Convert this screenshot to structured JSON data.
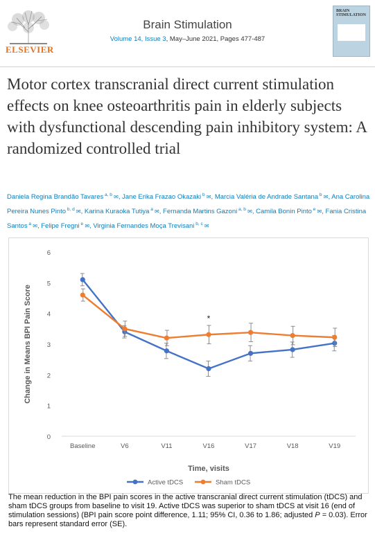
{
  "journal": {
    "publisher": "ELSEVIER",
    "name": "Brain Stimulation",
    "volume_issue": "Volume 14, Issue 3",
    "date_pages": ", May–June 2021, Pages 477-487",
    "cover_title": "BRAIN STIMULATION"
  },
  "article": {
    "title": "Motor cortex transcranial direct current stimulation effects on knee osteoarthritis pain in elderly subjects with dysfunctional descending pain inhibitory system: A randomized controlled trial",
    "authors": [
      {
        "name": "Daniela Regina Brandão Tavares",
        "aff": "a, b"
      },
      {
        "name": "Jane Erika Frazao Okazaki",
        "aff": "b"
      },
      {
        "name": "Marcia Valéria de Andrade Santana",
        "aff": "b"
      },
      {
        "name": "Ana Carolina Pereira Nunes Pinto",
        "aff": "b, d"
      },
      {
        "name": "Karina Kuraoka Tutiya",
        "aff": "a"
      },
      {
        "name": "Fernanda Martins Gazoni",
        "aff": "a, b"
      },
      {
        "name": "Camila Bonin Pinto",
        "aff": "e"
      },
      {
        "name": "Fania Cristina Santos",
        "aff": "a"
      },
      {
        "name": "Felipe Fregni",
        "aff": "e"
      },
      {
        "name": "Virginia Fernandes Moça Trevisani",
        "aff": "b, c"
      }
    ]
  },
  "caption": {
    "text_before": "The mean reduction in the BPI pain scores in the active transcranial direct current stimulation (tDCS) and sham tDCS groups from baseline to visit 19. Active tDCS was superior to sham tDCS at visit 16 (end of stimulation sessions) (BPI pain score point difference, 1.11; 95% CI, 0.36 to 1.86; adjusted ",
    "p_italic": "P",
    "text_after": " = 0.03). Error bars represent standard error (SE)."
  },
  "colors": {
    "active": "#4472c4",
    "sham": "#ed7d31",
    "publisher_orange": "#e9711c",
    "link_blue": "#0c7dbb"
  },
  "chart_data": {
    "type": "line",
    "categories": [
      "Baseline",
      "V6",
      "V11",
      "V16",
      "V17",
      "V18",
      "V19"
    ],
    "ylim": [
      0,
      6
    ],
    "yticks": [
      0,
      1,
      2,
      3,
      4,
      5,
      6
    ],
    "xlabel": "Time, visits",
    "ylabel": "Change in Means BPI Pain Score",
    "grid": false,
    "legend_position": "bottom",
    "series": [
      {
        "name": "Active tDCS",
        "color": "#4472c4",
        "values": [
          5.1,
          3.4,
          2.78,
          2.2,
          2.7,
          2.82,
          3.03
        ],
        "errors": [
          0.2,
          0.2,
          0.25,
          0.25,
          0.25,
          0.25,
          0.25
        ]
      },
      {
        "name": "Sham tDCS",
        "color": "#ed7d31",
        "values": [
          4.6,
          3.5,
          3.2,
          3.31,
          3.38,
          3.28,
          3.22
        ],
        "errors": [
          0.2,
          0.25,
          0.25,
          0.3,
          0.3,
          0.3,
          0.3
        ]
      }
    ],
    "annotations": [
      {
        "category": "V16",
        "text": "*"
      }
    ]
  }
}
